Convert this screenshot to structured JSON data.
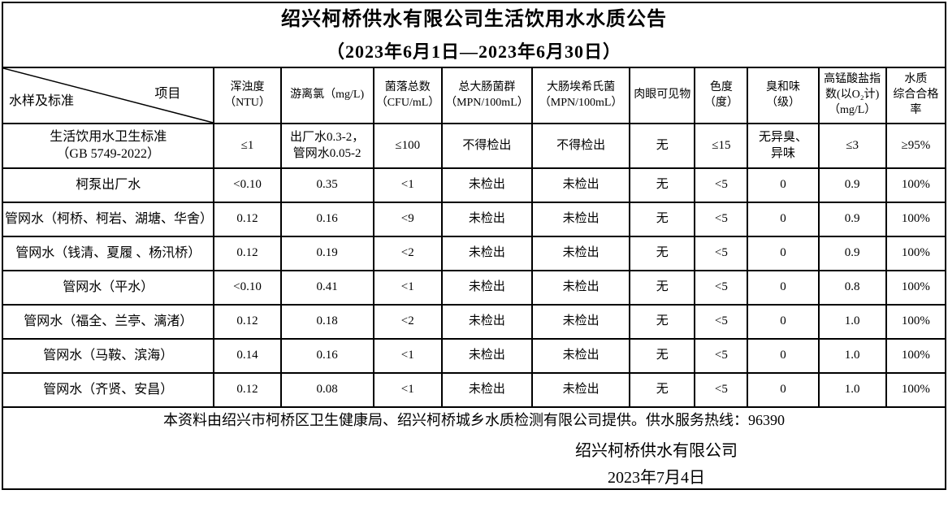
{
  "title": "绍兴柯桥供水有限公司生活饮用水水质公告",
  "subtitle": "（2023年6月1日—2023年6月30日）",
  "table": {
    "corner": {
      "top_right": "项目",
      "bottom_left": "水样及标准"
    },
    "columns": [
      "浑浊度\n（NTU）",
      "游离氯（mg/L)",
      "菌落总数\n（CFU/mL）",
      "总大肠菌群\n（MPN/100mL）",
      "大肠埃希氏菌\n（MPN/100mL）",
      "肉眼可见物",
      "色度\n（度）",
      "臭和味\n（级）",
      "高锰酸盐指数(以O₂计)\n（mg/L）",
      "水质\n综合合格率"
    ],
    "rows": [
      {
        "label": "生活饮用水卫生标准\n（GB 5749-2022）",
        "values": [
          "≤1",
          "出厂水0.3-2，\n管网水0.05-2",
          "≤100",
          "不得检出",
          "不得检出",
          "无",
          "≤15",
          "无异臭、\n异味",
          "≤3",
          "≥95%"
        ]
      },
      {
        "label": "柯泵出厂水",
        "values": [
          "<0.10",
          "0.35",
          "<1",
          "未检出",
          "未检出",
          "无",
          "<5",
          "0",
          "0.9",
          "100%"
        ]
      },
      {
        "label": "管网水（柯桥、柯岩、湖塘、华舍）",
        "values": [
          "0.12",
          "0.16",
          "<9",
          "未检出",
          "未检出",
          "无",
          "<5",
          "0",
          "0.9",
          "100%"
        ]
      },
      {
        "label": "管网水（钱清、夏履 、杨汛桥）",
        "values": [
          "0.12",
          "0.19",
          "<2",
          "未检出",
          "未检出",
          "无",
          "<5",
          "0",
          "0.9",
          "100%"
        ]
      },
      {
        "label": "管网水（平水）",
        "values": [
          "<0.10",
          "0.41",
          "<1",
          "未检出",
          "未检出",
          "无",
          "<5",
          "0",
          "0.8",
          "100%"
        ]
      },
      {
        "label": "管网水（福全、兰亭、漓渚）",
        "values": [
          "0.12",
          "0.18",
          "<2",
          "未检出",
          "未检出",
          "无",
          "<5",
          "0",
          "1.0",
          "100%"
        ]
      },
      {
        "label": "管网水（马鞍、滨海）",
        "values": [
          "0.14",
          "0.16",
          "<1",
          "未检出",
          "未检出",
          "无",
          "<5",
          "0",
          "1.0",
          "100%"
        ]
      },
      {
        "label": "管网水（齐贤、安昌）",
        "values": [
          "0.12",
          "0.08",
          "<1",
          "未检出",
          "未检出",
          "无",
          "<5",
          "0",
          "1.0",
          "100%"
        ]
      }
    ]
  },
  "footer": {
    "note": "本资料由绍兴市柯桥区卫生健康局、绍兴柯桥城乡水质检测有限公司提供。供水服务热线：96390",
    "company": "绍兴柯桥供水有限公司",
    "date": "2023年7月4日"
  },
  "colors": {
    "border": "#000000",
    "text": "#000000",
    "background": "#ffffff"
  }
}
